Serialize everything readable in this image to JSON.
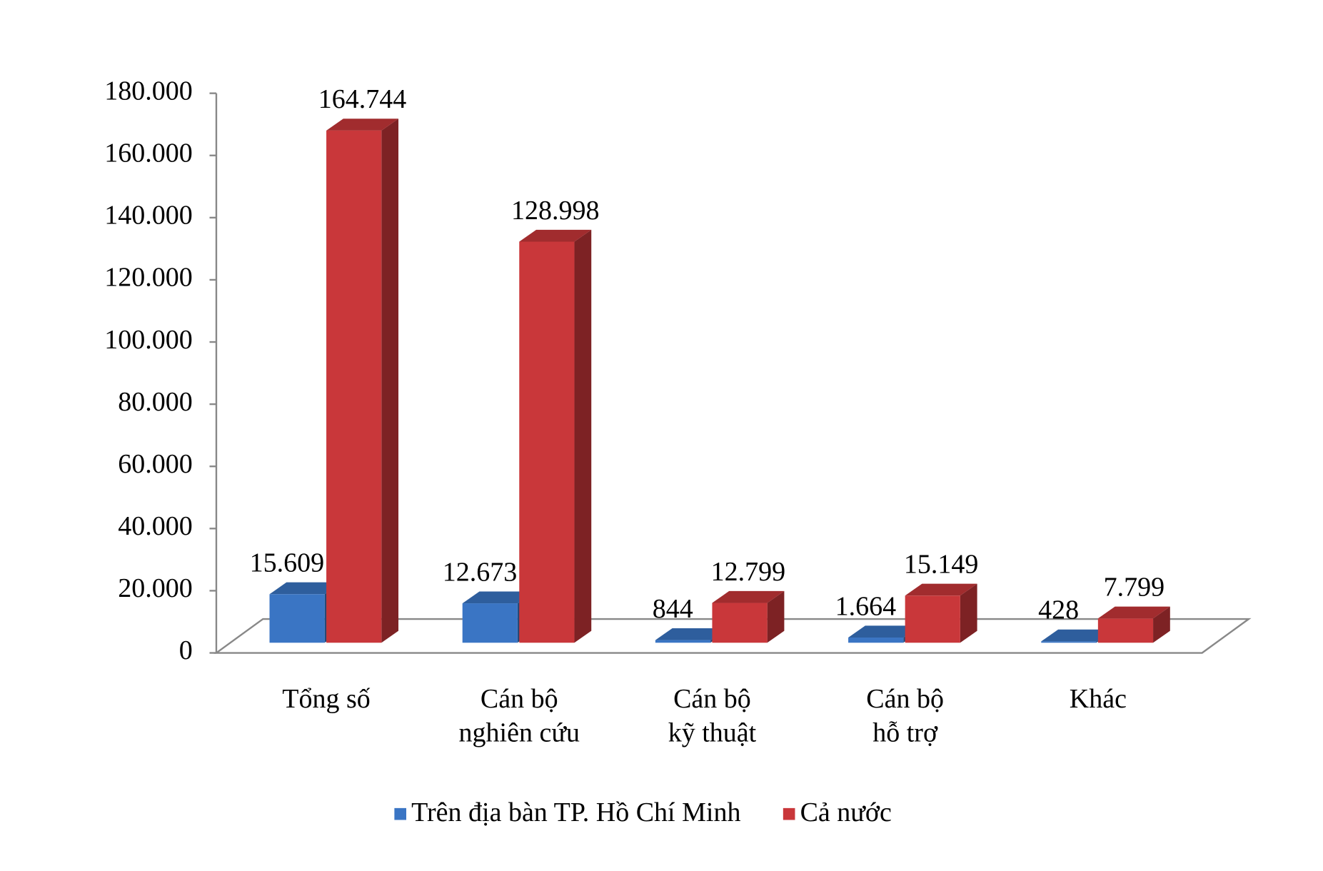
{
  "chart_data": {
    "type": "bar3d",
    "categories": [
      [
        "Tổng số"
      ],
      [
        "Cán bộ",
        "nghiên cứu"
      ],
      [
        "Cán bộ",
        "kỹ thuật"
      ],
      [
        "Cán bộ",
        "hỗ trợ"
      ],
      [
        "Khác"
      ]
    ],
    "series": [
      {
        "name": "Trên địa bàn TP. Hồ Chí Minh",
        "color": "#3a75c4",
        "values": [
          15609,
          12673,
          844,
          1664,
          428
        ],
        "value_labels": [
          "15.609",
          "12.673",
          "844",
          "1.664",
          "428"
        ]
      },
      {
        "name": "Cả nước",
        "color": "#c9373a",
        "values": [
          164744,
          128998,
          12799,
          15149,
          7799
        ],
        "value_labels": [
          "164.744",
          "128.998",
          "12.799",
          "15.149",
          "7.799"
        ]
      }
    ],
    "ylim": [
      0,
      180000
    ],
    "yticks": [
      0,
      {
        "value": 20000,
        "label": "20.000"
      },
      {
        "value": 40000,
        "label": "40.000"
      },
      {
        "value": 60000,
        "label": "60.000"
      },
      {
        "value": 80000,
        "label": "80.000"
      },
      {
        "value": 100000,
        "label": "100.000"
      },
      {
        "value": 120000,
        "label": "120.000"
      },
      {
        "value": 140000,
        "label": "140.000"
      },
      {
        "value": 160000,
        "label": "160.000"
      },
      {
        "value": 180000,
        "label": "180.000"
      }
    ],
    "legend": "bottom"
  }
}
